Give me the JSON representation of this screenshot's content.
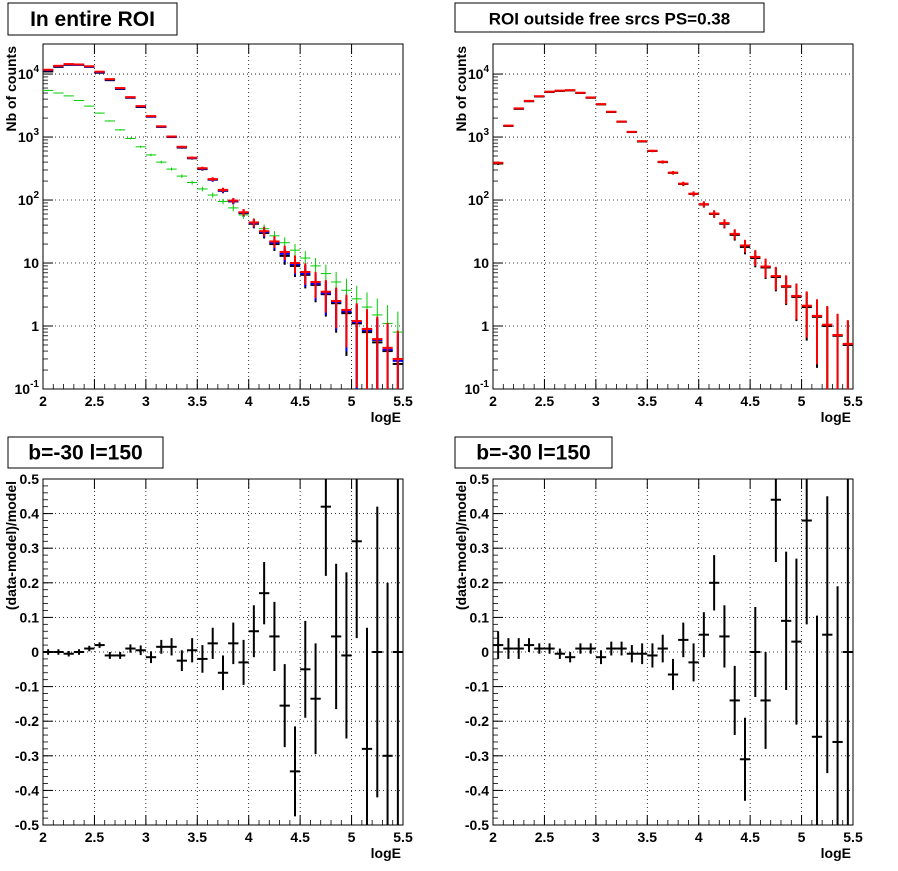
{
  "page_title": "",
  "chart_data": [
    {
      "type": "scatter",
      "title": "In entire ROI",
      "xlabel": "logE",
      "ylabel": "Nb of counts",
      "xlim": [
        2,
        5.5
      ],
      "ylim": [
        0.1,
        30000
      ],
      "y_log": true,
      "grid": true,
      "x_ticks": [
        "2",
        "2.5",
        "3",
        "3.5",
        "4",
        "4.5",
        "5",
        "5.5"
      ],
      "y_ticks": [
        "10^-1",
        "1",
        "10",
        "10^2",
        "10^3",
        "10^4"
      ],
      "x": [
        2.05,
        2.15,
        2.25,
        2.35,
        2.45,
        2.55,
        2.65,
        2.75,
        2.85,
        2.95,
        3.05,
        3.15,
        3.25,
        3.35,
        3.45,
        3.55,
        3.65,
        3.75,
        3.85,
        3.95,
        4.05,
        4.15,
        4.25,
        4.35,
        4.45,
        4.55,
        4.65,
        4.75,
        4.85,
        4.95,
        5.05,
        5.15,
        5.25,
        5.35,
        5.45
      ],
      "series": [
        {
          "color": "#000000",
          "values": [
            11000,
            13000,
            14000,
            14000,
            13000,
            10500,
            8000,
            5800,
            4200,
            3000,
            2100,
            1450,
            1000,
            680,
            460,
            310,
            210,
            140,
            95,
            62,
            42,
            30,
            20,
            13,
            9,
            6.5,
            4.5,
            3.2,
            2.3,
            1.6,
            1.1,
            0.8,
            0.55,
            0.4,
            0.25
          ]
        },
        {
          "color": "#0000ff",
          "values": [
            11500,
            13300,
            14200,
            14000,
            13100,
            10700,
            8200,
            5900,
            4250,
            3050,
            2120,
            1460,
            1010,
            690,
            465,
            315,
            212,
            142,
            96,
            63,
            43,
            31,
            21,
            14,
            9.5,
            6.8,
            4.7,
            3.3,
            2.4,
            1.7,
            1.15,
            0.85,
            0.6,
            0.42,
            0.28
          ]
        },
        {
          "color": "#00cc00",
          "values": [
            5500,
            5000,
            4500,
            3800,
            3100,
            2400,
            1800,
            1300,
            950,
            700,
            520,
            400,
            310,
            240,
            190,
            150,
            120,
            95,
            75,
            58,
            45,
            35,
            27,
            21,
            16,
            12,
            9,
            6.8,
            5,
            3.7,
            2.7,
            2,
            1.5,
            1.1,
            0.8
          ]
        },
        {
          "color": "#ff0000",
          "values": [
            11700,
            13500,
            14400,
            14200,
            13300,
            10900,
            8300,
            6000,
            4300,
            3100,
            2150,
            1480,
            1020,
            700,
            470,
            320,
            215,
            145,
            98,
            64,
            44,
            32,
            22,
            15,
            10,
            7.2,
            5,
            3.5,
            2.5,
            1.8,
            1.2,
            0.9,
            0.62,
            0.45,
            0.3
          ]
        }
      ]
    },
    {
      "type": "scatter",
      "title": "ROI outside free srcs PS=0.38",
      "xlabel": "logE",
      "ylabel": "Nb of counts",
      "xlim": [
        2,
        5.5
      ],
      "ylim": [
        0.1,
        30000
      ],
      "y_log": true,
      "grid": true,
      "x_ticks": [
        "2",
        "2.5",
        "3",
        "3.5",
        "4",
        "4.5",
        "5",
        "5.5"
      ],
      "y_ticks": [
        "10^-1",
        "1",
        "10",
        "10^2",
        "10^3",
        "10^4"
      ],
      "x": [
        2.05,
        2.15,
        2.25,
        2.35,
        2.45,
        2.55,
        2.65,
        2.75,
        2.85,
        2.95,
        3.05,
        3.15,
        3.25,
        3.35,
        3.45,
        3.55,
        3.65,
        3.75,
        3.85,
        3.95,
        4.05,
        4.15,
        4.25,
        4.35,
        4.45,
        4.55,
        4.65,
        4.75,
        4.85,
        4.95,
        5.05,
        5.15,
        5.25,
        5.35,
        5.45
      ],
      "series": [
        {
          "color": "#000000",
          "values": [
            380,
            1500,
            2800,
            3700,
            4400,
            5200,
            5400,
            5500,
            5000,
            4200,
            3300,
            2500,
            1750,
            1200,
            850,
            600,
            400,
            270,
            180,
            125,
            85,
            60,
            42,
            28,
            18,
            12,
            8.5,
            6,
            4.2,
            2.9,
            2,
            1.4,
            1,
            0.7,
            0.5
          ]
        },
        {
          "color": "#ff0000",
          "values": [
            390,
            1520,
            2850,
            3750,
            4450,
            5250,
            5450,
            5550,
            5050,
            4250,
            3330,
            2520,
            1760,
            1210,
            860,
            605,
            405,
            272,
            182,
            126,
            86,
            61,
            43,
            29,
            19,
            12.5,
            8.8,
            6.2,
            4.3,
            3,
            2.1,
            1.45,
            1.05,
            0.72,
            0.52
          ]
        }
      ]
    },
    {
      "type": "scatter",
      "title": "b=-30 l=150",
      "xlabel": "logE",
      "ylabel": "(data-model)/model",
      "xlim": [
        2,
        5.5
      ],
      "ylim": [
        -0.5,
        0.5
      ],
      "grid": true,
      "x_ticks": [
        "2",
        "2.5",
        "3",
        "3.5",
        "4",
        "4.5",
        "5",
        "5.5"
      ],
      "y_ticks": [
        "-0.5",
        "-0.4",
        "-0.3",
        "-0.2",
        "-0.1",
        "0",
        "0.1",
        "0.2",
        "0.3",
        "0.4",
        "0.5"
      ],
      "x": [
        2.05,
        2.15,
        2.25,
        2.35,
        2.45,
        2.55,
        2.65,
        2.75,
        2.85,
        2.95,
        3.05,
        3.15,
        3.25,
        3.35,
        3.45,
        3.55,
        3.65,
        3.75,
        3.85,
        3.95,
        4.05,
        4.15,
        4.25,
        4.35,
        4.45,
        4.55,
        4.65,
        4.75,
        4.85,
        4.95,
        5.05,
        5.15,
        5.25,
        5.35,
        5.45
      ],
      "values": [
        0.0,
        0.0,
        -0.005,
        0.0,
        0.01,
        0.02,
        -0.01,
        -0.01,
        0.01,
        0.005,
        -0.015,
        0.015,
        0.015,
        -0.025,
        0.005,
        -0.02,
        0.025,
        -0.06,
        0.025,
        -0.03,
        0.06,
        0.17,
        0.045,
        -0.155,
        -0.345,
        -0.05,
        -0.135,
        0.42,
        0.045,
        -0.01,
        0.32,
        -0.28,
        0.0,
        -0.3,
        0.0
      ],
      "errors": [
        0.008,
        0.008,
        0.008,
        0.008,
        0.008,
        0.008,
        0.01,
        0.01,
        0.012,
        0.014,
        0.017,
        0.02,
        0.025,
        0.03,
        0.035,
        0.04,
        0.045,
        0.05,
        0.06,
        0.065,
        0.075,
        0.09,
        0.1,
        0.12,
        0.13,
        0.14,
        0.16,
        0.2,
        0.21,
        0.24,
        0.28,
        0.35,
        0.42,
        0.5,
        0.6
      ]
    },
    {
      "type": "scatter",
      "title": "b=-30 l=150",
      "xlabel": "logE",
      "ylabel": "(data-model)/model",
      "xlim": [
        2,
        5.5
      ],
      "ylim": [
        -0.5,
        0.5
      ],
      "grid": true,
      "x_ticks": [
        "2",
        "2.5",
        "3",
        "3.5",
        "4",
        "4.5",
        "5",
        "5.5"
      ],
      "y_ticks": [
        "-0.5",
        "-0.4",
        "-0.3",
        "-0.2",
        "-0.1",
        "0",
        "0.1",
        "0.2",
        "0.3",
        "0.4",
        "0.5"
      ],
      "x": [
        2.05,
        2.15,
        2.25,
        2.35,
        2.45,
        2.55,
        2.65,
        2.75,
        2.85,
        2.95,
        3.05,
        3.15,
        3.25,
        3.35,
        3.45,
        3.55,
        3.65,
        3.75,
        3.85,
        3.95,
        4.05,
        4.15,
        4.25,
        4.35,
        4.45,
        4.55,
        4.65,
        4.75,
        4.85,
        4.95,
        5.05,
        5.15,
        5.25,
        5.35,
        5.45
      ],
      "values": [
        0.02,
        0.01,
        0.01,
        0.02,
        0.01,
        0.01,
        -0.005,
        -0.015,
        0.01,
        0.01,
        -0.015,
        0.01,
        0.01,
        -0.005,
        -0.005,
        -0.01,
        0.01,
        -0.065,
        0.035,
        -0.03,
        0.05,
        0.2,
        0.045,
        -0.14,
        -0.31,
        0.0,
        -0.14,
        0.44,
        0.09,
        0.03,
        0.38,
        -0.245,
        0.05,
        -0.26,
        0.0
      ],
      "errors": [
        0.04,
        0.03,
        0.03,
        0.02,
        0.015,
        0.015,
        0.015,
        0.015,
        0.015,
        0.015,
        0.02,
        0.02,
        0.02,
        0.025,
        0.03,
        0.035,
        0.04,
        0.045,
        0.05,
        0.055,
        0.065,
        0.08,
        0.09,
        0.1,
        0.12,
        0.13,
        0.14,
        0.18,
        0.2,
        0.24,
        0.3,
        0.35,
        0.4,
        0.45,
        0.5
      ]
    }
  ]
}
